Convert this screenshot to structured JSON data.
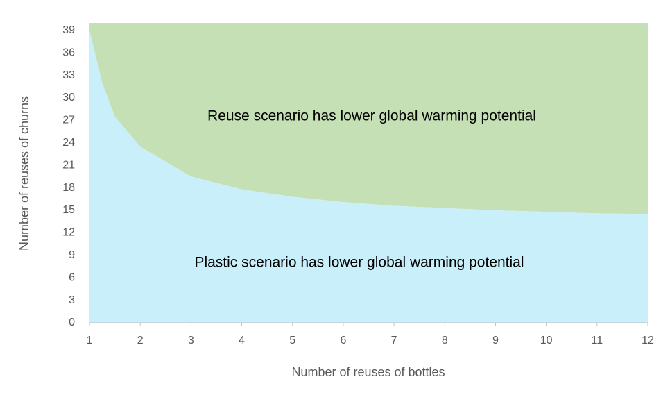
{
  "chart_data": {
    "type": "area",
    "x_label": "Number of reuses of bottles",
    "y_label": "Number of reuses of churns",
    "x": [
      1,
      1.25,
      1.5,
      2,
      3,
      4,
      5,
      6,
      7,
      8,
      9,
      10,
      11,
      12
    ],
    "values": [
      39,
      32,
      27.5,
      23.5,
      19.5,
      17.8,
      16.8,
      16.1,
      15.6,
      15.3,
      15.0,
      14.8,
      14.6,
      14.5
    ],
    "below_color": "#c9effb",
    "above_color": "#c5e0b4",
    "annotations": [
      "Reuse scenario has lower global warming potential",
      "Plastic scenario has lower global warming potential"
    ],
    "xlim": [
      1,
      12
    ],
    "xticks": [
      1,
      2,
      3,
      4,
      5,
      6,
      7,
      8,
      9,
      10,
      11,
      12
    ],
    "ylim": [
      0,
      40
    ],
    "yticks": [
      0,
      3,
      6,
      9,
      12,
      15,
      18,
      21,
      24,
      27,
      30,
      33,
      36,
      39
    ],
    "grid": false
  }
}
